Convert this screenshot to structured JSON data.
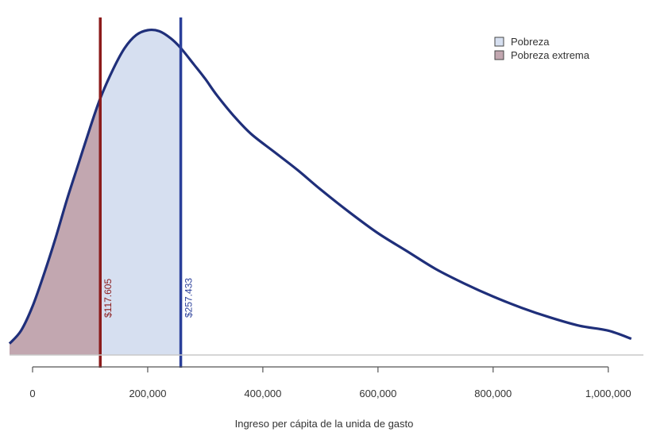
{
  "chart_data": {
    "type": "area",
    "title": "",
    "xlabel": "Ingreso per cápita de la unida de gasto",
    "ylabel": "",
    "xlim": [
      -40000,
      1050000
    ],
    "ylim": [
      0,
      1.0
    ],
    "x_ticks": [
      0,
      200000,
      400000,
      600000,
      800000,
      1000000
    ],
    "x_tick_labels": [
      "0",
      "200,000",
      "400,000",
      "600,000",
      "800,000",
      "1,000,000"
    ],
    "grid": false,
    "legend_position": "top-right",
    "series": [
      {
        "name": "",
        "color": "#1f2f7a",
        "x": [
          -40000,
          -20000,
          0,
          20000,
          40000,
          60000,
          80000,
          100000,
          117605,
          140000,
          160000,
          180000,
          200000,
          220000,
          240000,
          257433,
          280000,
          300000,
          320000,
          350000,
          380000,
          420000,
          460000,
          500000,
          550000,
          600000,
          650000,
          700000,
          750000,
          800000,
          850000,
          900000,
          950000,
          1000000,
          1040000
        ],
        "y": [
          0.035,
          0.075,
          0.15,
          0.25,
          0.36,
          0.48,
          0.59,
          0.7,
          0.79,
          0.88,
          0.945,
          0.985,
          1.0,
          0.997,
          0.975,
          0.945,
          0.895,
          0.85,
          0.8,
          0.735,
          0.68,
          0.625,
          0.57,
          0.51,
          0.44,
          0.375,
          0.32,
          0.265,
          0.22,
          0.18,
          0.145,
          0.115,
          0.09,
          0.075,
          0.05
        ]
      }
    ],
    "shaded_regions": [
      {
        "name": "Pobreza",
        "from": -40000,
        "to": 257433,
        "color": "#d6dff0"
      },
      {
        "name": "Pobreza extrema",
        "from": -40000,
        "to": 117605,
        "color": "#c2a7b0"
      }
    ],
    "vertical_lines": [
      {
        "x": 117605,
        "label": "$117.605",
        "color": "#8b1a1a"
      },
      {
        "x": 257433,
        "label": "$257.433",
        "color": "#2a3f9a"
      }
    ],
    "legend": [
      {
        "label": "Pobreza",
        "color": "#d6dff0"
      },
      {
        "label": "Pobreza extrema",
        "color": "#c2a7b0"
      }
    ]
  }
}
